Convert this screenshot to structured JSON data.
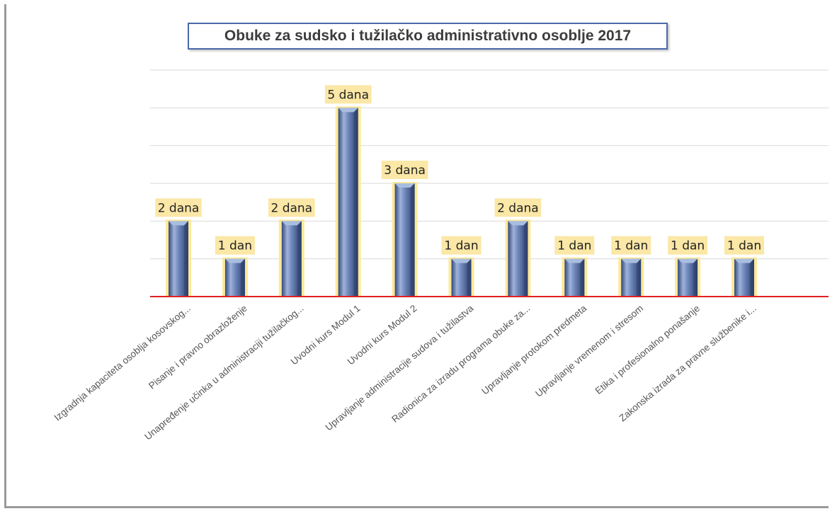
{
  "chart_data": {
    "type": "bar",
    "title": "Obuke za sudsko i tužilačko administrativno osoblje 2017",
    "categories": [
      "Izgradnja kapaciteta osoblja kosovskog...",
      "Pisanje i pravno obrazloženje",
      "Unapređenje učinka u administraciji tužilačkog...",
      "Uvodni kurs  Modul 1",
      "Uvodni kurs  Modul 2",
      "Upravljanje administracije sudova i tužilastva",
      "Radionica za izradu programa obuke za...",
      "Upravljanje protokom predmeta",
      "Upravljanje vremenom i  stresom",
      "Etika i profesionalno ponašanje",
      "Zakonska izrada  za pravne službenike i..."
    ],
    "values": [
      2,
      1,
      2,
      5,
      3,
      1,
      2,
      1,
      1,
      1,
      1
    ],
    "data_labels": [
      "2 dana",
      "1 dan",
      "2 dana",
      "5 dana",
      "3 dana",
      "1 dan",
      "2 dana",
      "1 dan",
      "1 dan",
      "1 dan",
      "1 dan"
    ],
    "ylim": [
      0,
      6
    ],
    "grid": true,
    "colors": {
      "bar": "#5a74a8",
      "bar_light": "#a9bde0",
      "bar_dark": "#2f4470",
      "bar_glow": "#fbe99a",
      "label_bg": "#fbe7a6",
      "baseline": "#e02020",
      "grid": "#d9d9d9"
    }
  }
}
